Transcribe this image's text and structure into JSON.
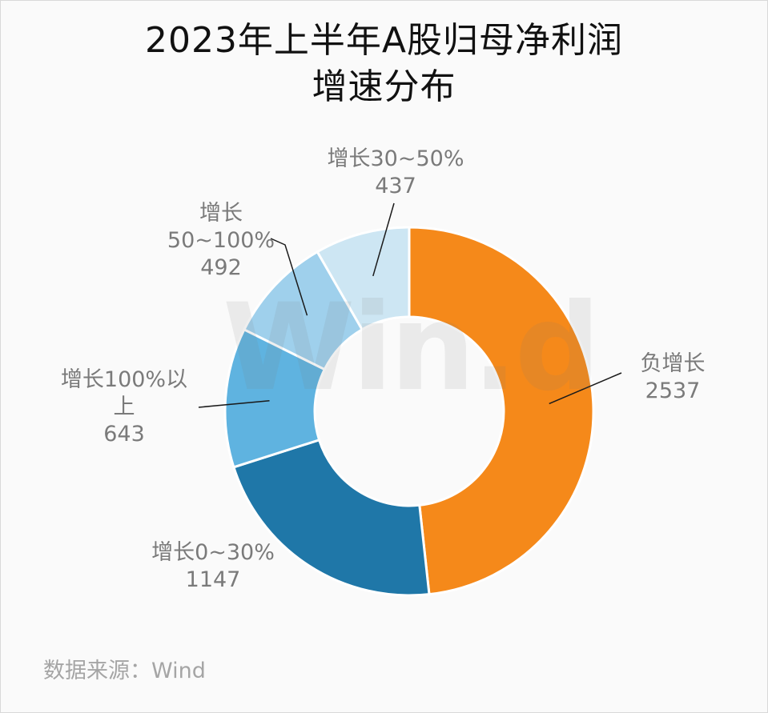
{
  "title_line1": "2023年上半年A股归母净利润",
  "title_line2": "增速分布",
  "watermark": "Win.d",
  "source": "数据来源：Wind",
  "chart_data": {
    "type": "pie",
    "variant": "donut",
    "title": "2023年上半年A股归母净利润增速分布",
    "categories": [
      "负增长",
      "增长0~30%",
      "增长100%以上",
      "增长50~100%",
      "增长30~50%"
    ],
    "values": [
      2537,
      1147,
      643,
      492,
      437
    ],
    "colors": [
      "#f5891a",
      "#1f77a8",
      "#5fb3e0",
      "#9fd0ec",
      "#cde6f3"
    ],
    "legend": "none"
  },
  "labels": [
    {
      "name": "负增长",
      "value": "2537"
    },
    {
      "name": "增长0~30%",
      "value": "1147"
    },
    {
      "name": "增长100%以上",
      "line1": "增长100%以",
      "line2": "上",
      "value": "643"
    },
    {
      "name": "增长50~100%",
      "line1": "增长",
      "line2": "50~100%",
      "value": "492"
    },
    {
      "name": "增长30~50%",
      "value": "437"
    }
  ]
}
